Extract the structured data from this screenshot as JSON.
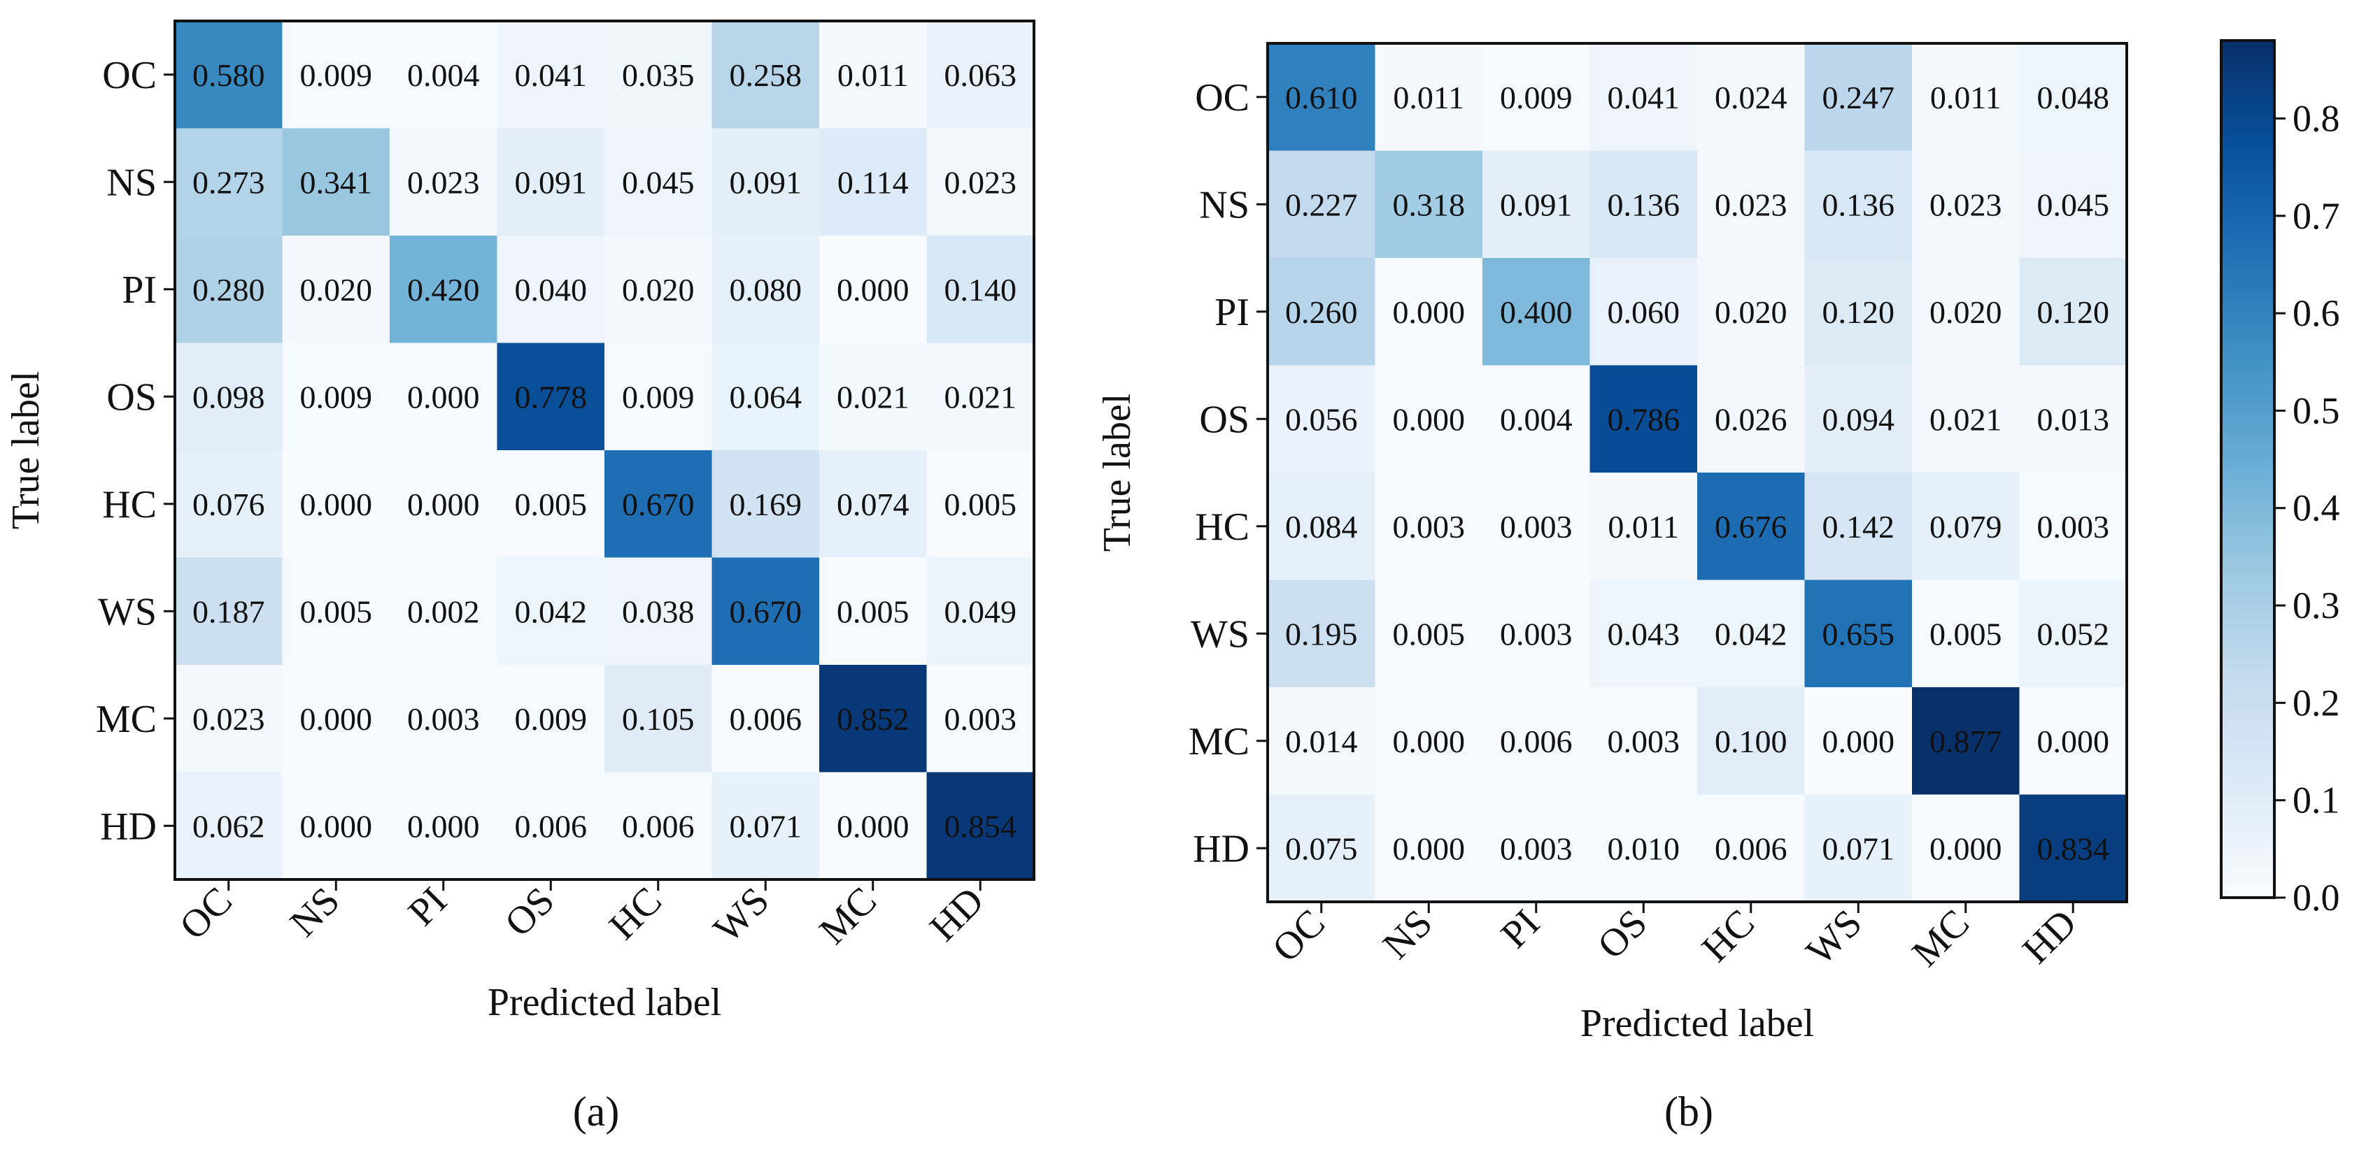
{
  "figure": {
    "colormap": "Blues",
    "colormap_stops": [
      "#f7fbff",
      "#deebf7",
      "#c6dbef",
      "#9ecae1",
      "#6baed6",
      "#4292c6",
      "#2171b5",
      "#08519c",
      "#08306b"
    ],
    "text_dark_color": "#1a1a4e",
    "text_light_color": "#ffffff"
  },
  "chart_data": [
    {
      "type": "heatmap",
      "caption": "(a)",
      "xlabel": "Predicted label",
      "ylabel": "True label",
      "row_labels": [
        "OC",
        "NS",
        "PI",
        "OS",
        "HC",
        "WS",
        "MC",
        "HD"
      ],
      "col_labels": [
        "OC",
        "NS",
        "PI",
        "OS",
        "HC",
        "WS",
        "MC",
        "HD"
      ],
      "values": [
        [
          0.58,
          0.009,
          0.004,
          0.041,
          0.035,
          0.258,
          0.011,
          0.063
        ],
        [
          0.273,
          0.341,
          0.023,
          0.091,
          0.045,
          0.091,
          0.114,
          0.023
        ],
        [
          0.28,
          0.02,
          0.42,
          0.04,
          0.02,
          0.08,
          0.0,
          0.14
        ],
        [
          0.098,
          0.009,
          0.0,
          0.778,
          0.009,
          0.064,
          0.021,
          0.021
        ],
        [
          0.076,
          0.0,
          0.0,
          0.005,
          0.67,
          0.169,
          0.074,
          0.005
        ],
        [
          0.187,
          0.005,
          0.002,
          0.042,
          0.038,
          0.67,
          0.005,
          0.049
        ],
        [
          0.023,
          0.0,
          0.003,
          0.009,
          0.105,
          0.006,
          0.852,
          0.003
        ],
        [
          0.062,
          0.0,
          0.0,
          0.006,
          0.006,
          0.071,
          0.0,
          0.854
        ]
      ],
      "vmin": 0.0,
      "vmax": 0.88
    },
    {
      "type": "heatmap",
      "caption": "(b)",
      "xlabel": "Predicted label",
      "ylabel": "True label",
      "row_labels": [
        "OC",
        "NS",
        "PI",
        "OS",
        "HC",
        "WS",
        "MC",
        "HD"
      ],
      "col_labels": [
        "OC",
        "NS",
        "PI",
        "OS",
        "HC",
        "WS",
        "MC",
        "HD"
      ],
      "values": [
        [
          0.61,
          0.011,
          0.009,
          0.041,
          0.024,
          0.247,
          0.011,
          0.048
        ],
        [
          0.227,
          0.318,
          0.091,
          0.136,
          0.023,
          0.136,
          0.023,
          0.045
        ],
        [
          0.26,
          0.0,
          0.4,
          0.06,
          0.02,
          0.12,
          0.02,
          0.12
        ],
        [
          0.056,
          0.0,
          0.004,
          0.786,
          0.026,
          0.094,
          0.021,
          0.013
        ],
        [
          0.084,
          0.003,
          0.003,
          0.011,
          0.676,
          0.142,
          0.079,
          0.003
        ],
        [
          0.195,
          0.005,
          0.003,
          0.043,
          0.042,
          0.655,
          0.005,
          0.052
        ],
        [
          0.014,
          0.0,
          0.006,
          0.003,
          0.1,
          0.0,
          0.877,
          0.0
        ],
        [
          0.075,
          0.0,
          0.003,
          0.01,
          0.006,
          0.071,
          0.0,
          0.834
        ]
      ],
      "vmin": 0.0,
      "vmax": 0.88
    }
  ],
  "colorbar": {
    "vmin": 0.0,
    "vmax": 0.88,
    "ticks": [
      0.0,
      0.1,
      0.2,
      0.3,
      0.4,
      0.5,
      0.6,
      0.7,
      0.8
    ],
    "tick_labels": [
      "0.0",
      "0.1",
      "0.2",
      "0.3",
      "0.4",
      "0.5",
      "0.6",
      "0.7",
      "0.8"
    ]
  }
}
